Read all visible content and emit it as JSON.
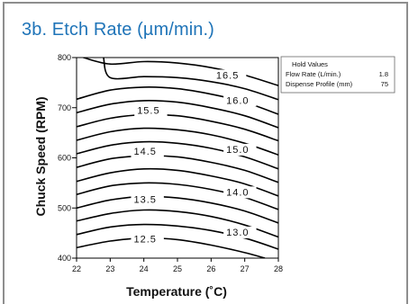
{
  "chart_data": {
    "type": "contour",
    "title": "3b. Etch Rate (µm/min.)",
    "xlabel": "Temperature (˚C)",
    "ylabel": "Chuck Speed (RPM)",
    "xlim": [
      22,
      28
    ],
    "ylim": [
      400,
      800
    ],
    "x_ticks": [
      "22",
      "23",
      "24",
      "25",
      "26",
      "27",
      "28"
    ],
    "y_ticks": [
      "400",
      "500",
      "600",
      "700",
      "800"
    ],
    "contours": [
      {
        "level": "12.5",
        "points": [
          [
            22,
            421
          ],
          [
            23,
            434
          ],
          [
            24,
            440
          ],
          [
            25,
            437
          ],
          [
            26,
            426
          ],
          [
            27,
            411
          ],
          [
            27.6,
            400
          ]
        ]
      },
      {
        "level": "13.0",
        "points": [
          [
            22,
            447
          ],
          [
            23,
            462
          ],
          [
            24,
            467
          ],
          [
            25,
            464
          ],
          [
            26,
            455
          ],
          [
            27,
            440
          ],
          [
            28,
            418
          ]
        ]
      },
      {
        "level": "13.5",
        "points": [
          [
            22,
            474
          ],
          [
            23,
            489
          ],
          [
            24,
            496
          ],
          [
            25,
            493
          ],
          [
            26,
            483
          ],
          [
            27,
            466
          ],
          [
            28,
            442
          ]
        ]
      },
      {
        "level": "14.0",
        "points": [
          [
            22,
            500
          ],
          [
            23,
            516
          ],
          [
            24,
            523
          ],
          [
            25,
            520
          ],
          [
            26,
            510
          ],
          [
            27,
            494
          ],
          [
            28,
            470
          ]
        ]
      },
      {
        "level": "14.5",
        "points": [
          [
            22,
            527
          ],
          [
            23,
            544
          ],
          [
            24,
            550
          ],
          [
            25,
            547
          ],
          [
            26,
            537
          ],
          [
            27,
            521
          ],
          [
            28,
            497
          ]
        ]
      },
      {
        "level": "15.0",
        "points": [
          [
            22,
            553
          ],
          [
            23,
            570
          ],
          [
            24,
            578
          ],
          [
            25,
            575
          ],
          [
            26,
            564
          ],
          [
            27,
            548
          ],
          [
            28,
            524
          ]
        ]
      },
      {
        "level": "15.5",
        "points": [
          [
            22,
            581
          ],
          [
            23,
            598
          ],
          [
            24,
            604
          ],
          [
            25,
            602
          ],
          [
            26,
            591
          ],
          [
            27,
            575
          ],
          [
            28,
            551
          ]
        ]
      },
      {
        "level": "16.0",
        "points": [
          [
            22,
            608
          ],
          [
            23,
            625
          ],
          [
            24,
            632
          ],
          [
            25,
            629
          ],
          [
            26,
            619
          ],
          [
            27,
            602
          ],
          [
            28,
            578
          ]
        ]
      },
      {
        "level": "16.5",
        "points": [
          [
            22,
            635
          ],
          [
            23,
            652
          ],
          [
            24,
            659
          ],
          [
            25,
            656
          ],
          [
            26,
            646
          ],
          [
            27,
            629
          ],
          [
            28,
            606
          ]
        ]
      },
      {
        "level": "",
        "points": [
          [
            22,
            662
          ],
          [
            23,
            679
          ],
          [
            24,
            686
          ],
          [
            25,
            684
          ],
          [
            26,
            673
          ],
          [
            27,
            657
          ],
          [
            28,
            634
          ]
        ]
      },
      {
        "level": "",
        "points": [
          [
            22,
            690
          ],
          [
            23,
            707
          ],
          [
            24,
            714
          ],
          [
            25,
            711
          ],
          [
            26,
            700
          ],
          [
            27,
            684
          ],
          [
            28,
            660
          ]
        ]
      },
      {
        "level": "",
        "points": [
          [
            22,
            717
          ],
          [
            23,
            735
          ],
          [
            24,
            741
          ],
          [
            25,
            738
          ],
          [
            26,
            727
          ],
          [
            27,
            711
          ],
          [
            28,
            687
          ]
        ]
      },
      {
        "level": "",
        "points": [
          [
            22.8,
            800
          ],
          [
            23,
            760
          ],
          [
            24,
            762
          ],
          [
            25,
            760
          ],
          [
            26,
            752
          ],
          [
            27,
            738
          ],
          [
            28,
            716
          ]
        ]
      },
      {
        "level": "",
        "points": [
          [
            22.2,
            800
          ],
          [
            23,
            787
          ],
          [
            24,
            792
          ],
          [
            25,
            789
          ],
          [
            26,
            780
          ],
          [
            27,
            765
          ],
          [
            28,
            744
          ]
        ]
      }
    ],
    "contour_labels": [
      {
        "text": "16.5",
        "x": 26.15,
        "y": 758
      },
      {
        "text": "16.0",
        "x": 26.45,
        "y": 708
      },
      {
        "text": "15.5",
        "x": 23.8,
        "y": 688
      },
      {
        "text": "15.0",
        "x": 26.45,
        "y": 610
      },
      {
        "text": "14.5",
        "x": 23.7,
        "y": 606
      },
      {
        "text": "14.0",
        "x": 26.45,
        "y": 525
      },
      {
        "text": "13.5",
        "x": 23.7,
        "y": 510
      },
      {
        "text": "13.0",
        "x": 26.45,
        "y": 445
      },
      {
        "text": "12.5",
        "x": 23.7,
        "y": 431
      }
    ],
    "legend": {
      "title": "Hold Values",
      "items": [
        {
          "label": "Flow Rate (L/min.)",
          "value": "1.8"
        },
        {
          "label": "Dispense Profile (mm)",
          "value": "75"
        }
      ]
    },
    "grid": false
  }
}
